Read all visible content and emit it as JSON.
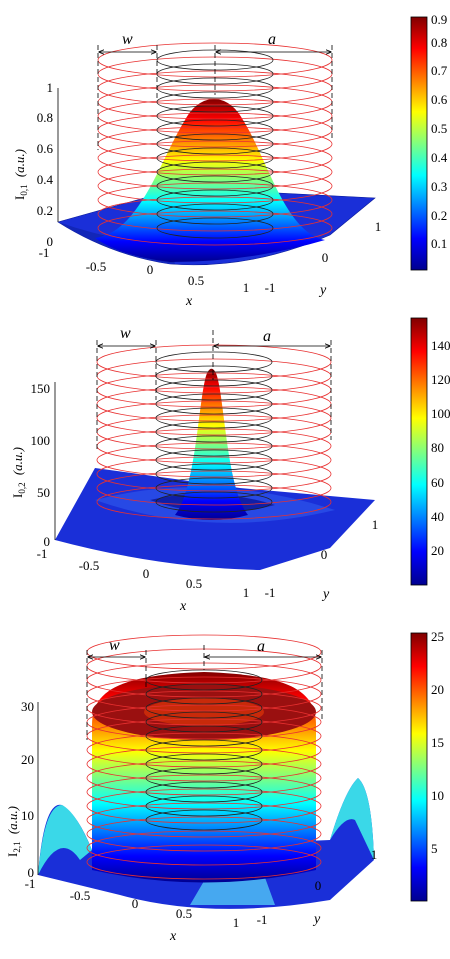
{
  "chart_data": [
    {
      "type": "surface",
      "ylabel_main": "I",
      "ylabel_sub": "0,1",
      "ylabel_unit": "(a.u.)",
      "xlabel": "x",
      "ylabel_y": "y",
      "annot_w": "w",
      "annot_a": "a",
      "zticks": [
        "0",
        "0.2",
        "0.4",
        "0.6",
        "0.8",
        "1"
      ],
      "xticks": [
        "-1",
        "-0.5",
        "0",
        "0.5",
        "1"
      ],
      "yticks": [
        "1",
        "0",
        "-1"
      ],
      "colorbar_ticks": [
        "0.1",
        "0.2",
        "0.3",
        "0.4",
        "0.5",
        "0.6",
        "0.7",
        "0.8",
        "0.9"
      ],
      "colorbar_range": [
        0,
        0.9
      ],
      "zlim": [
        0,
        1
      ],
      "peak": 1.0,
      "profile": "gaussian"
    },
    {
      "type": "surface",
      "ylabel_main": "I",
      "ylabel_sub": "0,2",
      "ylabel_unit": "(a.u.)",
      "xlabel": "x",
      "ylabel_y": "y",
      "annot_w": "w",
      "annot_a": "a",
      "zticks": [
        "0",
        "50",
        "100",
        "150"
      ],
      "xticks": [
        "-1",
        "-0.5",
        "0",
        "0.5",
        "1"
      ],
      "yticks": [
        "1",
        "0",
        "-1"
      ],
      "colorbar_ticks": [
        "20",
        "40",
        "60",
        "80",
        "100",
        "120",
        "140"
      ],
      "colorbar_range": [
        0,
        155
      ],
      "zlim": [
        0,
        165
      ],
      "peak": 165,
      "profile": "sharp-peak"
    },
    {
      "type": "surface",
      "ylabel_main": "I",
      "ylabel_sub": "2,1",
      "ylabel_unit": "(a.u.)",
      "xlabel": "x",
      "ylabel_y": "y",
      "annot_w": "w",
      "annot_a": "a",
      "zticks": [
        "0",
        "10",
        "20",
        "30"
      ],
      "xticks": [
        "-1",
        "-0.5",
        "0",
        "0.5",
        "1"
      ],
      "yticks": [
        "1",
        "0",
        "-1"
      ],
      "colorbar_ticks": [
        "5",
        "10",
        "15",
        "20",
        "25"
      ],
      "colorbar_range": [
        0,
        25.5
      ],
      "zlim": [
        0,
        30
      ],
      "peak": 25,
      "profile": "flat-top-ring"
    }
  ]
}
